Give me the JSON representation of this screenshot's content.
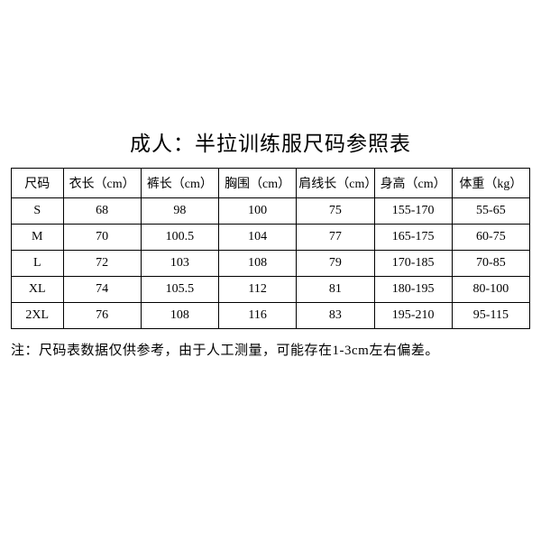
{
  "title": "成人：半拉训练服尺码参照表",
  "table": {
    "columns": [
      "尺码",
      "衣长（cm）",
      "裤长（cm）",
      "胸围（cm）",
      "肩线长（cm）",
      "身高（cm）",
      "体重（kg）"
    ],
    "rows": [
      [
        "S",
        "68",
        "98",
        "100",
        "75",
        "155-170",
        "55-65"
      ],
      [
        "M",
        "70",
        "100.5",
        "104",
        "77",
        "165-175",
        "60-75"
      ],
      [
        "L",
        "72",
        "103",
        "108",
        "79",
        "170-185",
        "70-85"
      ],
      [
        "XL",
        "74",
        "105.5",
        "112",
        "81",
        "180-195",
        "80-100"
      ],
      [
        "2XL",
        "76",
        "108",
        "116",
        "83",
        "195-210",
        "95-115"
      ]
    ]
  },
  "note": "注：尺码表数据仅供参考，由于人工测量，可能存在1-3cm左右偏差。",
  "styling": {
    "background_color": "#ffffff",
    "text_color": "#000000",
    "border_color": "#000000",
    "title_fontsize": 23,
    "cell_fontsize": 14,
    "note_fontsize": 15,
    "font_family": "SimSun"
  }
}
